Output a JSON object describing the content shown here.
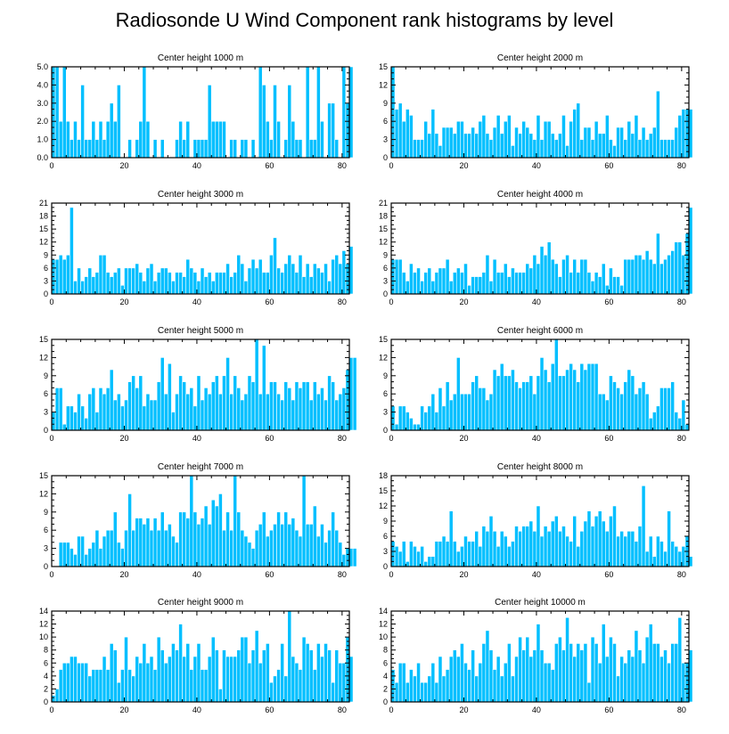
{
  "title": "Radiosonde U Wind Component rank histograms by level",
  "colors": {
    "bar": "#00bfff",
    "bar_edge": "#ffffff",
    "axis": "#000000"
  },
  "chart_data": [
    {
      "type": "bar",
      "title": "Center height 1000 m",
      "ylim": [
        0,
        5
      ],
      "yticks": [
        0,
        1,
        2,
        3,
        4,
        5
      ],
      "ytick_labels": [
        "0.0",
        "1.0",
        "2.0",
        "3.0",
        "4.0",
        "5.0"
      ],
      "xlim": [
        0,
        82
      ],
      "xticks": [
        0,
        20,
        40,
        60,
        80
      ],
      "xtick_labels": [
        "0",
        "20",
        "40",
        "60",
        "80"
      ],
      "values": [
        5,
        5,
        2,
        5,
        2,
        1,
        2,
        1,
        4,
        1,
        1,
        2,
        1,
        2,
        1,
        2,
        3,
        2,
        4,
        0,
        0,
        1,
        0,
        1,
        2,
        5,
        2,
        0,
        1,
        0,
        1,
        0,
        0,
        0,
        1,
        2,
        1,
        2,
        0,
        1,
        1,
        1,
        1,
        4,
        2,
        2,
        2,
        2,
        0,
        1,
        1,
        0,
        1,
        1,
        0,
        1,
        0,
        5,
        4,
        2,
        1,
        4,
        2,
        0,
        1,
        4,
        2,
        1,
        1,
        0,
        5,
        1,
        1,
        5,
        2,
        0,
        3,
        3,
        1,
        0,
        5,
        3,
        5
      ]
    },
    {
      "type": "bar",
      "title": "Center height 2000 m",
      "ylim": [
        0,
        15
      ],
      "yticks": [
        0,
        3,
        6,
        9,
        12,
        15
      ],
      "ytick_labels": [
        "0",
        "3",
        "6",
        "9",
        "12",
        "15"
      ],
      "xlim": [
        0,
        82
      ],
      "xticks": [
        0,
        20,
        40,
        60,
        80
      ],
      "xtick_labels": [
        "0",
        "20",
        "40",
        "60",
        "80"
      ],
      "values": [
        15,
        8,
        9,
        6,
        8,
        7,
        3,
        3,
        3,
        6,
        4,
        8,
        4,
        2,
        5,
        5,
        5,
        4,
        6,
        6,
        4,
        4,
        5,
        4,
        6,
        7,
        4,
        3,
        5,
        7,
        4,
        6,
        7,
        2,
        5,
        4,
        6,
        5,
        4,
        3,
        7,
        3,
        6,
        6,
        4,
        3,
        4,
        7,
        2,
        6,
        8,
        9,
        3,
        5,
        5,
        3,
        6,
        4,
        4,
        7,
        3,
        2,
        5,
        5,
        3,
        6,
        4,
        7,
        3,
        5,
        3,
        4,
        5,
        11,
        3,
        3,
        3,
        3,
        5,
        7,
        8,
        8,
        8
      ]
    },
    {
      "type": "bar",
      "title": "Center height 3000 m",
      "ylim": [
        0,
        21
      ],
      "yticks": [
        0,
        3,
        6,
        9,
        12,
        15,
        18,
        21
      ],
      "ytick_labels": [
        "0",
        "3",
        "6",
        "9",
        "12",
        "15",
        "18",
        "21"
      ],
      "xlim": [
        0,
        82
      ],
      "xticks": [
        0,
        20,
        40,
        60,
        80
      ],
      "xtick_labels": [
        "0",
        "20",
        "40",
        "60",
        "80"
      ],
      "values": [
        8,
        8,
        9,
        8,
        9,
        20,
        3,
        6,
        3,
        4,
        6,
        4,
        5,
        9,
        9,
        5,
        4,
        5,
        6,
        2,
        6,
        6,
        6,
        7,
        5,
        3,
        6,
        7,
        3,
        5,
        6,
        6,
        5,
        3,
        5,
        5,
        4,
        8,
        6,
        5,
        3,
        6,
        4,
        5,
        3,
        5,
        5,
        5,
        7,
        4,
        5,
        9,
        7,
        3,
        6,
        8,
        6,
        8,
        5,
        5,
        9,
        13,
        6,
        5,
        7,
        9,
        7,
        5,
        9,
        4,
        7,
        4,
        7,
        6,
        5,
        7,
        3,
        8,
        9,
        7,
        10,
        7,
        11
      ]
    },
    {
      "type": "bar",
      "title": "Center height 4000 m",
      "ylim": [
        0,
        21
      ],
      "yticks": [
        0,
        3,
        6,
        9,
        12,
        15,
        18,
        21
      ],
      "ytick_labels": [
        "0",
        "3",
        "6",
        "9",
        "12",
        "15",
        "18",
        "21"
      ],
      "xlim": [
        0,
        82
      ],
      "xticks": [
        0,
        20,
        40,
        60,
        80
      ],
      "xtick_labels": [
        "0",
        "20",
        "40",
        "60",
        "80"
      ],
      "values": [
        8,
        8,
        8,
        5,
        3,
        7,
        5,
        6,
        3,
        5,
        6,
        3,
        5,
        6,
        6,
        8,
        3,
        5,
        6,
        5,
        7,
        2,
        4,
        4,
        4,
        5,
        9,
        3,
        8,
        5,
        5,
        7,
        4,
        6,
        5,
        5,
        5,
        7,
        6,
        9,
        7,
        11,
        9,
        12,
        8,
        7,
        4,
        8,
        9,
        5,
        8,
        5,
        8,
        8,
        5,
        3,
        5,
        4,
        7,
        2,
        6,
        4,
        4,
        2,
        8,
        8,
        8,
        9,
        9,
        8,
        10,
        8,
        7,
        14,
        7,
        8,
        9,
        10,
        12,
        12,
        9,
        14,
        20
      ]
    },
    {
      "type": "bar",
      "title": "Center height 5000 m",
      "ylim": [
        0,
        15
      ],
      "yticks": [
        0,
        3,
        6,
        9,
        12,
        15
      ],
      "ytick_labels": [
        "0",
        "3",
        "6",
        "9",
        "12",
        "15"
      ],
      "xlim": [
        0,
        82
      ],
      "xticks": [
        0,
        20,
        40,
        60,
        80
      ],
      "xtick_labels": [
        "0",
        "20",
        "40",
        "60",
        "80"
      ],
      "values": [
        3,
        7,
        7,
        1,
        4,
        4,
        3,
        6,
        4,
        2,
        6,
        7,
        3,
        7,
        6,
        7,
        10,
        5,
        6,
        4,
        5,
        8,
        9,
        7,
        9,
        4,
        6,
        5,
        5,
        8,
        12,
        6,
        11,
        3,
        6,
        9,
        8,
        6,
        7,
        4,
        9,
        5,
        7,
        6,
        8,
        9,
        6,
        9,
        12,
        6,
        9,
        7,
        5,
        6,
        9,
        8,
        15,
        6,
        14,
        6,
        8,
        8,
        6,
        5,
        8,
        7,
        5,
        8,
        7,
        8,
        8,
        5,
        8,
        6,
        7,
        5,
        9,
        8,
        5,
        6,
        7,
        10,
        12,
        12
      ]
    },
    {
      "type": "bar",
      "title": "Center height 6000 m",
      "ylim": [
        0,
        15
      ],
      "yticks": [
        0,
        3,
        6,
        9,
        12,
        15
      ],
      "ytick_labels": [
        "0",
        "3",
        "6",
        "9",
        "12",
        "15"
      ],
      "xlim": [
        0,
        82
      ],
      "xticks": [
        0,
        20,
        40,
        60,
        80
      ],
      "xtick_labels": [
        "0",
        "20",
        "40",
        "60",
        "80"
      ],
      "values": [
        4,
        1,
        4,
        4,
        3,
        2,
        1,
        1,
        4,
        3,
        4,
        6,
        3,
        7,
        4,
        8,
        5,
        6,
        12,
        6,
        6,
        6,
        8,
        9,
        7,
        7,
        5,
        6,
        10,
        9,
        11,
        9,
        9,
        10,
        8,
        7,
        8,
        8,
        9,
        6,
        9,
        12,
        10,
        8,
        11,
        15,
        9,
        9,
        10,
        11,
        10,
        8,
        11,
        10,
        11,
        11,
        11,
        6,
        6,
        5,
        9,
        8,
        7,
        6,
        8,
        10,
        9,
        6,
        7,
        8,
        6,
        2,
        3,
        4,
        7,
        7,
        7,
        8,
        3,
        2,
        5,
        1
      ]
    },
    {
      "type": "bar",
      "title": "Center height 7000 m",
      "ylim": [
        0,
        15
      ],
      "yticks": [
        0,
        3,
        6,
        9,
        12,
        15
      ],
      "ytick_labels": [
        "0",
        "3",
        "6",
        "9",
        "12",
        "15"
      ],
      "xlim": [
        0,
        82
      ],
      "xticks": [
        0,
        20,
        40,
        60,
        80
      ],
      "xtick_labels": [
        "0",
        "20",
        "40",
        "60",
        "80"
      ],
      "values": [
        0,
        0,
        4,
        4,
        4,
        3,
        2,
        5,
        5,
        2,
        3,
        4,
        6,
        3,
        5,
        6,
        6,
        9,
        4,
        3,
        6,
        12,
        6,
        8,
        8,
        7,
        8,
        6,
        8,
        6,
        9,
        6,
        7,
        5,
        4,
        9,
        9,
        8,
        15,
        9,
        7,
        8,
        10,
        7,
        11,
        10,
        12,
        6,
        9,
        6,
        15,
        9,
        6,
        5,
        4,
        3,
        6,
        7,
        9,
        5,
        6,
        7,
        9,
        7,
        9,
        7,
        8,
        6,
        5,
        15,
        7,
        7,
        10,
        5,
        7,
        4,
        6,
        9,
        6,
        4,
        2,
        3,
        3,
        3
      ]
    },
    {
      "type": "bar",
      "title": "Center height 8000 m",
      "ylim": [
        0,
        18
      ],
      "yticks": [
        0,
        3,
        6,
        9,
        12,
        15,
        18
      ],
      "ytick_labels": [
        "0",
        "3",
        "6",
        "9",
        "12",
        "15",
        "18"
      ],
      "xlim": [
        0,
        82
      ],
      "xticks": [
        0,
        20,
        40,
        60,
        80
      ],
      "xtick_labels": [
        "0",
        "20",
        "40",
        "60",
        "80"
      ],
      "values": [
        5,
        4,
        3,
        5,
        1,
        5,
        4,
        3,
        4,
        1,
        2,
        2,
        5,
        5,
        6,
        5,
        11,
        5,
        3,
        4,
        6,
        5,
        5,
        7,
        4,
        8,
        7,
        10,
        7,
        4,
        7,
        6,
        4,
        5,
        8,
        7,
        8,
        8,
        9,
        7,
        12,
        6,
        8,
        7,
        9,
        10,
        7,
        8,
        6,
        5,
        10,
        4,
        7,
        9,
        11,
        8,
        10,
        11,
        9,
        7,
        10,
        12,
        6,
        7,
        6,
        7,
        7,
        5,
        8,
        16,
        3,
        6,
        2,
        6,
        5,
        3,
        11,
        5,
        4,
        3,
        4,
        6,
        2
      ]
    },
    {
      "type": "bar",
      "title": "Center height 9000 m",
      "ylim": [
        0,
        14
      ],
      "yticks": [
        0,
        2,
        4,
        6,
        8,
        10,
        12,
        14
      ],
      "ytick_labels": [
        "0",
        "2",
        "4",
        "6",
        "8",
        "10",
        "12",
        "14"
      ],
      "xlim": [
        0,
        82
      ],
      "xticks": [
        0,
        20,
        40,
        60,
        80
      ],
      "xtick_labels": [
        "0",
        "20",
        "40",
        "60",
        "80"
      ],
      "values": [
        1,
        2,
        5,
        6,
        6,
        7,
        7,
        6,
        6,
        6,
        4,
        5,
        5,
        5,
        7,
        5,
        9,
        8,
        3,
        5,
        10,
        5,
        4,
        7,
        6,
        9,
        6,
        7,
        5,
        10,
        8,
        6,
        7,
        9,
        8,
        12,
        7,
        9,
        5,
        7,
        9,
        5,
        5,
        7,
        10,
        8,
        2,
        8,
        7,
        7,
        7,
        8,
        10,
        10,
        6,
        8,
        11,
        6,
        8,
        9,
        3,
        4,
        5,
        9,
        4,
        14,
        7,
        6,
        5,
        10,
        9,
        8,
        5,
        9,
        7,
        9,
        8,
        3,
        8,
        6,
        6,
        10,
        7
      ]
    },
    {
      "type": "bar",
      "title": "Center height 10000 m",
      "ylim": [
        0,
        14
      ],
      "yticks": [
        0,
        2,
        4,
        6,
        8,
        10,
        12,
        14
      ],
      "ytick_labels": [
        "0",
        "2",
        "4",
        "6",
        "8",
        "10",
        "12",
        "14"
      ],
      "xlim": [
        0,
        82
      ],
      "xticks": [
        0,
        20,
        40,
        60,
        80
      ],
      "xtick_labels": [
        "0",
        "20",
        "40",
        "60",
        "80"
      ],
      "values": [
        5,
        3,
        6,
        6,
        3,
        5,
        4,
        6,
        3,
        3,
        4,
        6,
        3,
        7,
        4,
        5,
        7,
        8,
        7,
        9,
        6,
        5,
        8,
        4,
        6,
        9,
        11,
        8,
        5,
        7,
        4,
        6,
        9,
        4,
        7,
        10,
        8,
        10,
        7,
        8,
        12,
        8,
        6,
        6,
        5,
        9,
        10,
        8,
        13,
        9,
        7,
        9,
        8,
        9,
        3,
        10,
        9,
        6,
        12,
        7,
        10,
        9,
        4,
        7,
        6,
        8,
        7,
        11,
        8,
        6,
        10,
        12,
        9,
        9,
        7,
        8,
        6,
        9,
        9,
        13,
        6,
        6,
        8
      ]
    }
  ]
}
